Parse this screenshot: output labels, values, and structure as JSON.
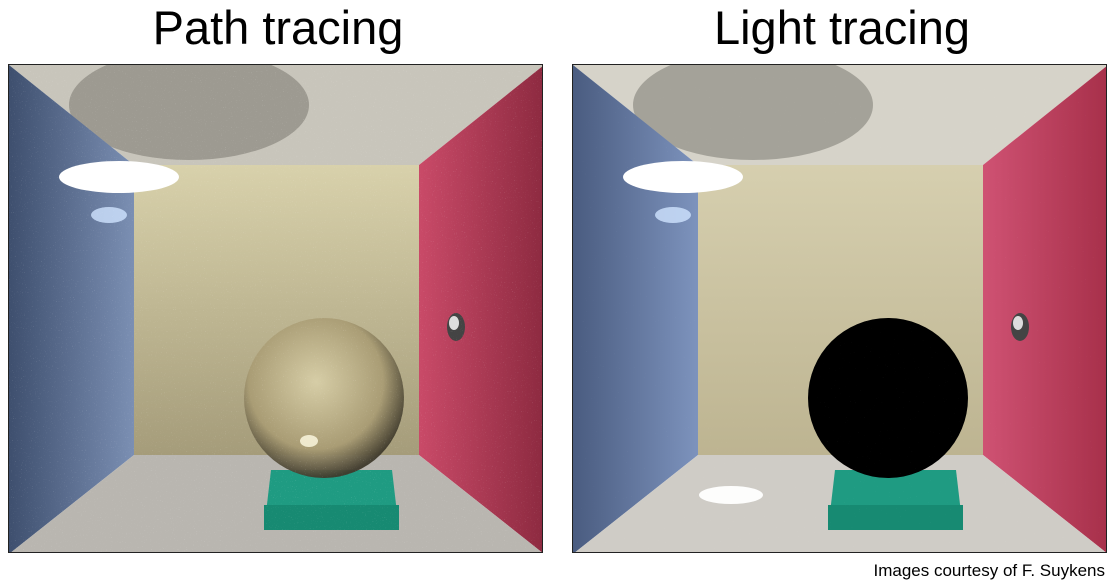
{
  "panels": {
    "left": {
      "title": "Path tracing"
    },
    "right": {
      "title": "Light tracing"
    }
  },
  "credit": "Images courtesy of F. Suykens",
  "colors": {
    "left_wall": "#5a6f93",
    "right_wall": "#b23a55",
    "back_wall": "#cdc49c",
    "ceiling": "#d9d6cc",
    "floor": "#d7d4cf",
    "box": "#1fa58a",
    "sphere_glass": "#bfb38a",
    "sphere_black": "#000000"
  }
}
